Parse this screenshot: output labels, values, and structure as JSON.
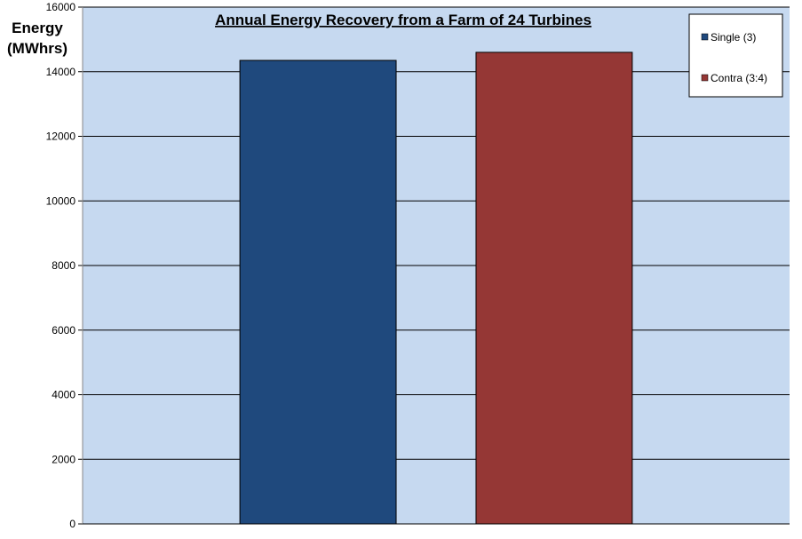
{
  "chart_data": {
    "type": "bar",
    "title": "Annual Energy Recovery from a Farm of 24 Turbines",
    "y_label": [
      "Energy",
      "(MWhrs)"
    ],
    "categories": [
      null
    ],
    "series": [
      {
        "name": "Single (3)",
        "color": "#1f497d",
        "values": [
          14350
        ]
      },
      {
        "name": "Contra (3:4)",
        "color": "#953735",
        "values": [
          14600
        ]
      }
    ],
    "ylim": [
      0,
      16000
    ],
    "yticks": [
      0,
      2000,
      4000,
      6000,
      8000,
      10000,
      12000,
      14000,
      16000
    ],
    "grid": true,
    "legend": "top-right",
    "plot_background": "#c6d9f0"
  }
}
